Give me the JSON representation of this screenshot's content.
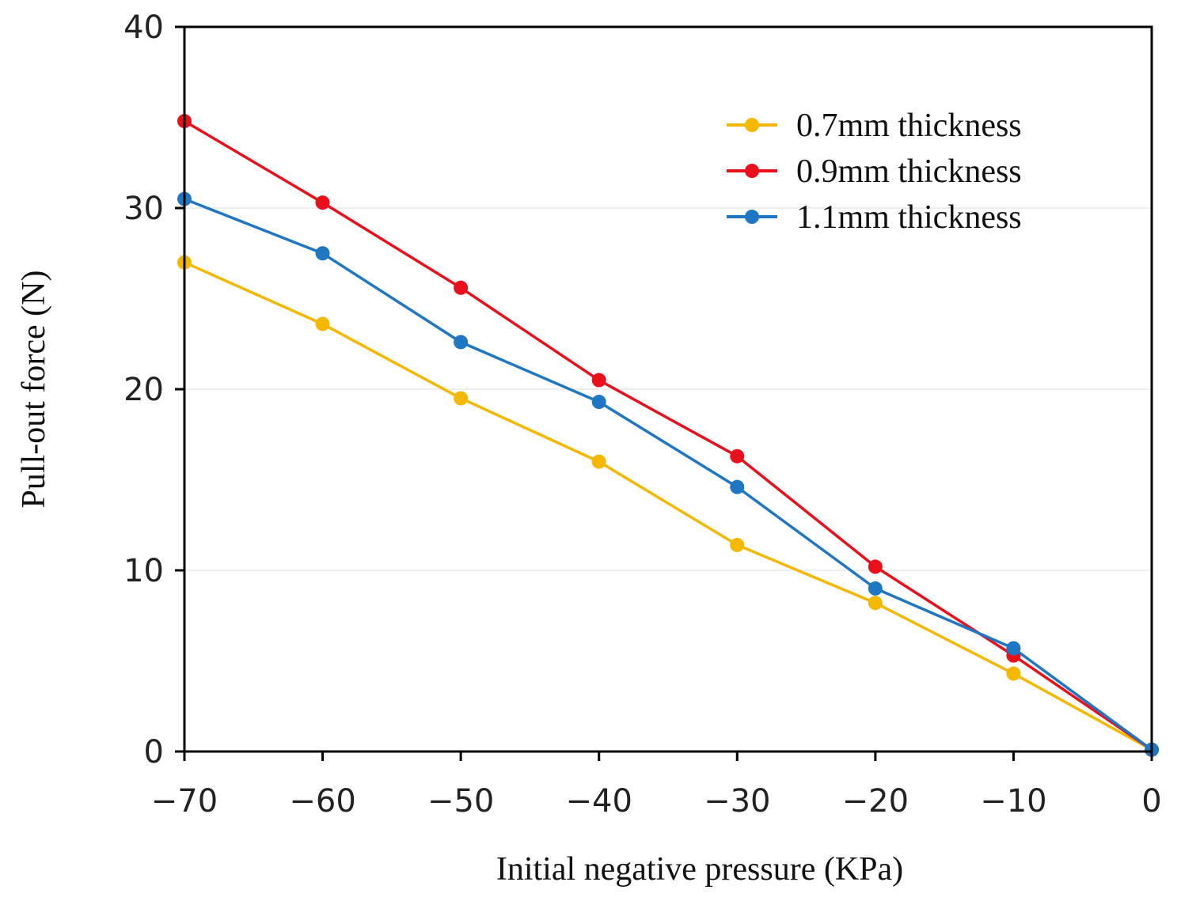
{
  "chart_data": {
    "type": "line",
    "title": "",
    "xlabel": "Initial negative pressure (KPa)",
    "ylabel": "Pull-out force (N)",
    "x": [
      -70,
      -60,
      -50,
      -40,
      -30,
      -20,
      -10,
      0
    ],
    "xlim": [
      -70,
      0
    ],
    "ylim": [
      0,
      40
    ],
    "xticks": [
      -70,
      -60,
      -50,
      -40,
      -30,
      -20,
      -10,
      0
    ],
    "xtick_labels": [
      "−70",
      "−60",
      "−50",
      "−40",
      "−30",
      "−20",
      "−10",
      "0"
    ],
    "yticks": [
      0,
      10,
      20,
      30,
      40
    ],
    "ytick_labels": [
      "0",
      "10",
      "20",
      "30",
      "40"
    ],
    "grid": true,
    "legend_position": "top-right",
    "series": [
      {
        "name": "0.7mm thickness",
        "color": "#F5B800",
        "values": [
          27.0,
          23.6,
          19.5,
          16.0,
          11.4,
          8.2,
          4.3,
          0.1
        ]
      },
      {
        "name": "0.9mm thickness",
        "color": "#E8101A",
        "values": [
          34.8,
          30.3,
          25.6,
          20.5,
          16.3,
          10.2,
          5.3,
          0.1
        ]
      },
      {
        "name": "1.1mm thickness",
        "color": "#1F77C4",
        "values": [
          30.5,
          27.5,
          22.6,
          19.3,
          14.6,
          9.0,
          5.7,
          0.1
        ]
      }
    ]
  }
}
